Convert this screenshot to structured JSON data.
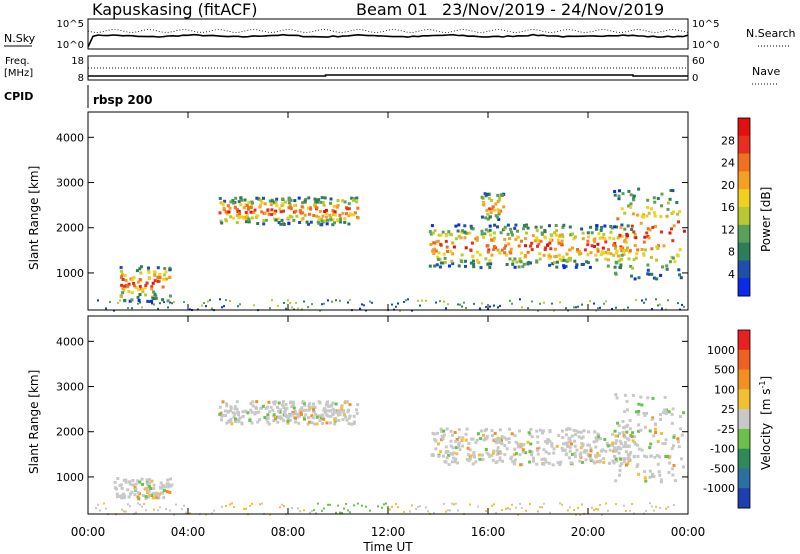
{
  "header": {
    "station": "Kapuskasing (fitACF)",
    "beam": "Beam 01",
    "dates": "23/Nov/2019 - 24/Nov/2019"
  },
  "top_panels": {
    "nsky_label": "N.Sky",
    "nsearch_label": "N.Search",
    "noise_ticks_left": [
      "10^5",
      "10^0"
    ],
    "noise_ticks_right": [
      "10^5",
      "10^0"
    ],
    "freq_label": "Freq.",
    "freq_unit": "[MHz]",
    "freq_ticks": [
      "18",
      "8"
    ],
    "nave_label": "Nave",
    "nave_ticks": [
      "60",
      "0"
    ],
    "cpid_label": "CPID",
    "cpid_value": "rbsp 200"
  },
  "chart_data": [
    {
      "type": "heatmap",
      "name": "power",
      "ylabel": "Slant Range [km]",
      "xlabel": "Time UT",
      "ylim": [
        180,
        4560
      ],
      "yticks": [
        "1000",
        "2000",
        "3000",
        "4000"
      ],
      "xticks": [
        "00:00",
        "04:00",
        "08:00",
        "12:00",
        "16:00",
        "20:00",
        "00:00"
      ],
      "colorbar": {
        "label": "Power [dB]",
        "ticks": [
          "4",
          "8",
          "12",
          "16",
          "20",
          "24",
          "28"
        ],
        "colors": [
          "#0a2be8",
          "#1f4fa8",
          "#2e7d5a",
          "#5aa05a",
          "#b8c832",
          "#f0d020",
          "#f5a020",
          "#f07020",
          "#e83020",
          "#e01010"
        ]
      },
      "echo_regions": [
        {
          "t_start": 1.2,
          "t_end": 3.3,
          "r_min": 400,
          "r_max": 1200
        },
        {
          "t_start": 5.2,
          "t_end": 10.8,
          "r_min": 2100,
          "r_max": 2700
        },
        {
          "t_start": 13.6,
          "t_end": 21.9,
          "r_min": 1150,
          "r_max": 2100
        },
        {
          "t_start": 15.7,
          "t_end": 16.6,
          "r_min": 2200,
          "r_max": 2800
        },
        {
          "t_start": 21.0,
          "t_end": 23.8,
          "r_min": 900,
          "r_max": 2900
        }
      ]
    },
    {
      "type": "heatmap",
      "name": "velocity",
      "ylabel": "Slant Range [km]",
      "xlabel": "Time UT",
      "ylim": [
        180,
        4560
      ],
      "yticks": [
        "1000",
        "2000",
        "3000",
        "4000"
      ],
      "xticks": [
        "00:00",
        "04:00",
        "08:00",
        "12:00",
        "16:00",
        "20:00",
        "00:00"
      ],
      "colorbar": {
        "label_main": "Velocity",
        "label_unit": "[m s",
        "label_exp": "-1",
        "label_close": "]",
        "ticks": [
          "1000",
          "500",
          "100",
          "25",
          "-25",
          "-100",
          "-500",
          "-1000"
        ],
        "colors": [
          "#1f3fb0",
          "#2a6fa0",
          "#2e8a5a",
          "#6cc04a",
          "#c8c8c8",
          "#f0c030",
          "#f09020",
          "#f06020",
          "#e82020"
        ]
      },
      "echo_regions": [
        {
          "t_start": 1.0,
          "t_end": 3.3,
          "r_min": 550,
          "r_max": 1000
        },
        {
          "t_start": 5.2,
          "t_end": 10.8,
          "r_min": 2200,
          "r_max": 2700
        },
        {
          "t_start": 13.6,
          "t_end": 21.9,
          "r_min": 1300,
          "r_max": 2100
        },
        {
          "t_start": 21.0,
          "t_end": 23.8,
          "r_min": 900,
          "r_max": 2900
        }
      ]
    }
  ]
}
